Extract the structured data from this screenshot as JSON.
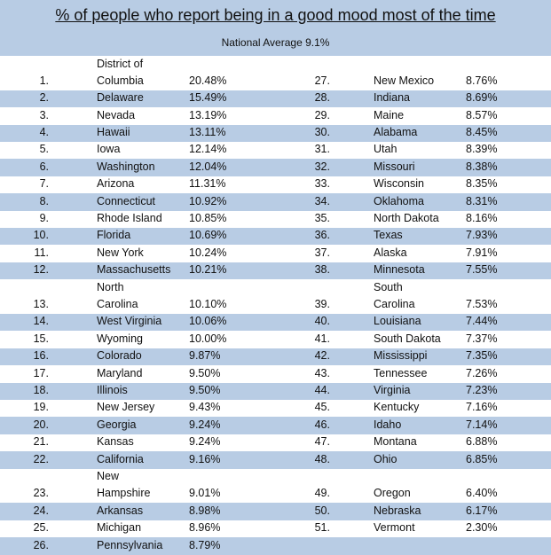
{
  "title": "% of people who report being in a good mood most of the time",
  "subtitle": "National Average 9.1%",
  "rows": [
    {
      "left": {
        "rank": "1.",
        "name": "District of\nColumbia",
        "value": "20.48%"
      },
      "right": {
        "rank": "27.",
        "name": "New Mexico",
        "value": "8.76%"
      }
    },
    {
      "left": {
        "rank": "2.",
        "name": "Delaware",
        "value": "15.49%"
      },
      "right": {
        "rank": "28.",
        "name": "Indiana",
        "value": "8.69%"
      }
    },
    {
      "left": {
        "rank": "3.",
        "name": "Nevada",
        "value": "13.19%"
      },
      "right": {
        "rank": "29.",
        "name": "Maine",
        "value": "8.57%"
      }
    },
    {
      "left": {
        "rank": "4.",
        "name": "Hawaii",
        "value": "13.11%"
      },
      "right": {
        "rank": "30.",
        "name": "Alabama",
        "value": "8.45%"
      }
    },
    {
      "left": {
        "rank": "5.",
        "name": "Iowa",
        "value": "12.14%"
      },
      "right": {
        "rank": "31.",
        "name": "Utah",
        "value": "8.39%"
      }
    },
    {
      "left": {
        "rank": "6.",
        "name": "Washington",
        "value": "12.04%"
      },
      "right": {
        "rank": "32.",
        "name": "Missouri",
        "value": "8.38%"
      }
    },
    {
      "left": {
        "rank": "7.",
        "name": "Arizona",
        "value": "11.31%"
      },
      "right": {
        "rank": "33.",
        "name": "Wisconsin",
        "value": "8.35%"
      }
    },
    {
      "left": {
        "rank": "8.",
        "name": "Connecticut",
        "value": "10.92%"
      },
      "right": {
        "rank": "34.",
        "name": "Oklahoma",
        "value": "8.31%"
      }
    },
    {
      "left": {
        "rank": "9.",
        "name": "Rhode Island",
        "value": "10.85%"
      },
      "right": {
        "rank": "35.",
        "name": "North Dakota",
        "value": "8.16%"
      }
    },
    {
      "left": {
        "rank": "10.",
        "name": "Florida",
        "value": "10.69%"
      },
      "right": {
        "rank": "36.",
        "name": "Texas",
        "value": "7.93%"
      }
    },
    {
      "left": {
        "rank": "11.",
        "name": "New York",
        "value": "10.24%"
      },
      "right": {
        "rank": "37.",
        "name": "Alaska",
        "value": "7.91%"
      }
    },
    {
      "left": {
        "rank": "12.",
        "name": "Massachusetts",
        "value": "10.21%"
      },
      "right": {
        "rank": "38.",
        "name": "Minnesota",
        "value": "7.55%"
      }
    },
    {
      "left": {
        "rank": "13.",
        "name": "North\nCarolina",
        "value": "10.10%"
      },
      "right": {
        "rank": "39.",
        "name": "South\nCarolina",
        "value": "7.53%"
      }
    },
    {
      "left": {
        "rank": "14.",
        "name": "West Virginia",
        "value": "10.06%"
      },
      "right": {
        "rank": "40.",
        "name": "Louisiana",
        "value": "7.44%"
      }
    },
    {
      "left": {
        "rank": "15.",
        "name": "Wyoming",
        "value": "10.00%"
      },
      "right": {
        "rank": "41.",
        "name": "South Dakota",
        "value": "7.37%"
      }
    },
    {
      "left": {
        "rank": "16.",
        "name": "Colorado",
        "value": "9.87%"
      },
      "right": {
        "rank": "42.",
        "name": "Mississippi",
        "value": "7.35%"
      }
    },
    {
      "left": {
        "rank": "17.",
        "name": "Maryland",
        "value": "9.50%"
      },
      "right": {
        "rank": "43.",
        "name": "Tennessee",
        "value": "7.26%"
      }
    },
    {
      "left": {
        "rank": "18.",
        "name": "Illinois",
        "value": "9.50%"
      },
      "right": {
        "rank": "44.",
        "name": "Virginia",
        "value": "7.23%"
      }
    },
    {
      "left": {
        "rank": "19.",
        "name": "New Jersey",
        "value": "9.43%"
      },
      "right": {
        "rank": "45.",
        "name": "Kentucky",
        "value": "7.16%"
      }
    },
    {
      "left": {
        "rank": "20.",
        "name": "Georgia",
        "value": "9.24%"
      },
      "right": {
        "rank": "46.",
        "name": "Idaho",
        "value": "7.14%"
      }
    },
    {
      "left": {
        "rank": "21.",
        "name": "Kansas",
        "value": "9.24%"
      },
      "right": {
        "rank": "47.",
        "name": "Montana",
        "value": "6.88%"
      }
    },
    {
      "left": {
        "rank": "22.",
        "name": "California",
        "value": "9.16%"
      },
      "right": {
        "rank": "48.",
        "name": "Ohio",
        "value": "6.85%"
      }
    },
    {
      "left": {
        "rank": "23.",
        "name": "New\nHampshire",
        "value": "9.01%"
      },
      "right": {
        "rank": "49.",
        "name": "Oregon",
        "value": "6.40%"
      }
    },
    {
      "left": {
        "rank": "24.",
        "name": "Arkansas",
        "value": "8.98%"
      },
      "right": {
        "rank": "50.",
        "name": "Nebraska",
        "value": "6.17%"
      }
    },
    {
      "left": {
        "rank": "25.",
        "name": "Michigan",
        "value": "8.96%"
      },
      "right": {
        "rank": "51.",
        "name": "Vermont",
        "value": "2.30%"
      }
    },
    {
      "left": {
        "rank": "26.",
        "name": "Pennsylvania",
        "value": "8.79%"
      }
    }
  ]
}
